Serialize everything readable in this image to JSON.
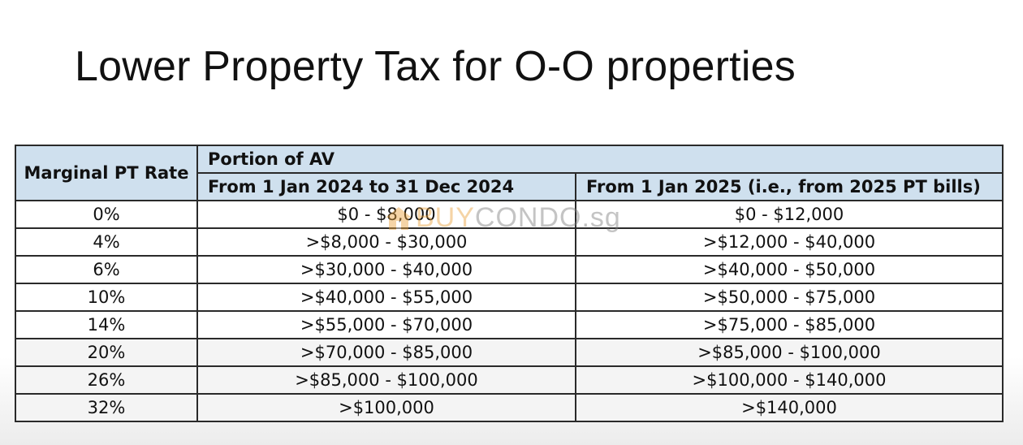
{
  "title": "Lower Property Tax for O-O properties",
  "table": {
    "header_rate": "Marginal PT Rate",
    "header_portion": "Portion of AV",
    "subheader_2024": "From 1 Jan 2024 to 31 Dec 2024",
    "subheader_2025": "From 1 Jan 2025 (i.e., from 2025 PT bills)",
    "rows": [
      {
        "rate": "0%",
        "av2024": "$0 - $8,000",
        "av2025": "$0 - $12,000"
      },
      {
        "rate": "4%",
        "av2024": ">$8,000 - $30,000",
        "av2025": ">$12,000 - $40,000"
      },
      {
        "rate": "6%",
        "av2024": ">$30,000 - $40,000",
        "av2025": ">$40,000 - $50,000"
      },
      {
        "rate": "10%",
        "av2024": ">$40,000 - $55,000",
        "av2025": ">$50,000 - $75,000"
      },
      {
        "rate": "14%",
        "av2024": ">$55,000 - $70,000",
        "av2025": ">$75,000 - $85,000"
      },
      {
        "rate": "20%",
        "av2024": ">$70,000 - $85,000",
        "av2025": ">$85,000 - $100,000"
      },
      {
        "rate": "26%",
        "av2024": ">$85,000 - $100,000",
        "av2025": ">$100,000 - $140,000"
      },
      {
        "rate": "32%",
        "av2024": ">$100,000",
        "av2025": ">$140,000"
      }
    ]
  },
  "watermark": {
    "part1": "BUY",
    "part2": "CONDO",
    "part3": ".sg",
    "icon": "house-icon"
  },
  "colors": {
    "header_bg": "#cfe0ee",
    "border": "#2a2a2a",
    "watermark_orange": "#e9a23b",
    "watermark_gray": "#7d7d7d"
  }
}
